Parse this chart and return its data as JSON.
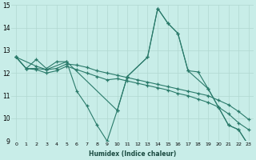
{
  "xlabel": "Humidex (Indice chaleur)",
  "xlim": [
    -0.5,
    23.5
  ],
  "ylim": [
    9,
    15
  ],
  "background_color": "#c8ede8",
  "grid_color": "#b0d8d0",
  "line_color": "#2a7a6a",
  "lines": [
    {
      "x": [
        0,
        1,
        2,
        3,
        4,
        5,
        10,
        11,
        13,
        14,
        15,
        16,
        17,
        19,
        20,
        21,
        22,
        23
      ],
      "y": [
        12.7,
        12.2,
        12.6,
        12.2,
        12.5,
        12.5,
        10.35,
        11.85,
        12.7,
        14.85,
        14.2,
        13.75,
        12.1,
        11.3,
        10.5,
        9.7,
        9.5,
        8.8
      ]
    },
    {
      "x": [
        0,
        1,
        2,
        3,
        4,
        5,
        6,
        7,
        8,
        9,
        10,
        11,
        12,
        13,
        14,
        15,
        16,
        17,
        18,
        19,
        20,
        21,
        22,
        23
      ],
      "y": [
        12.7,
        12.2,
        12.15,
        12.0,
        12.1,
        12.3,
        12.15,
        12.0,
        11.85,
        11.7,
        11.75,
        11.65,
        11.55,
        11.45,
        11.35,
        11.25,
        11.1,
        11.0,
        10.85,
        10.7,
        10.5,
        10.2,
        9.8,
        9.5
      ]
    },
    {
      "x": [
        0,
        1,
        2,
        3,
        4,
        5,
        6,
        7,
        8,
        9,
        10,
        11,
        12,
        13,
        14,
        15,
        16,
        17,
        18,
        19,
        20,
        21,
        22,
        23
      ],
      "y": [
        12.7,
        12.2,
        12.2,
        12.15,
        12.2,
        12.4,
        12.35,
        12.25,
        12.1,
        12.0,
        11.9,
        11.8,
        11.7,
        11.6,
        11.5,
        11.4,
        11.3,
        11.2,
        11.1,
        11.0,
        10.8,
        10.6,
        10.3,
        9.95
      ]
    },
    {
      "x": [
        0,
        2,
        3,
        5,
        6,
        7,
        8,
        9,
        10,
        11,
        13,
        14,
        15,
        16,
        17,
        18,
        19,
        20,
        21,
        22,
        23
      ],
      "y": [
        12.7,
        12.3,
        12.15,
        12.5,
        11.2,
        10.55,
        9.7,
        9.0,
        10.35,
        11.85,
        12.7,
        14.85,
        14.2,
        13.75,
        12.1,
        12.05,
        11.3,
        10.5,
        9.7,
        9.5,
        8.8
      ]
    }
  ]
}
